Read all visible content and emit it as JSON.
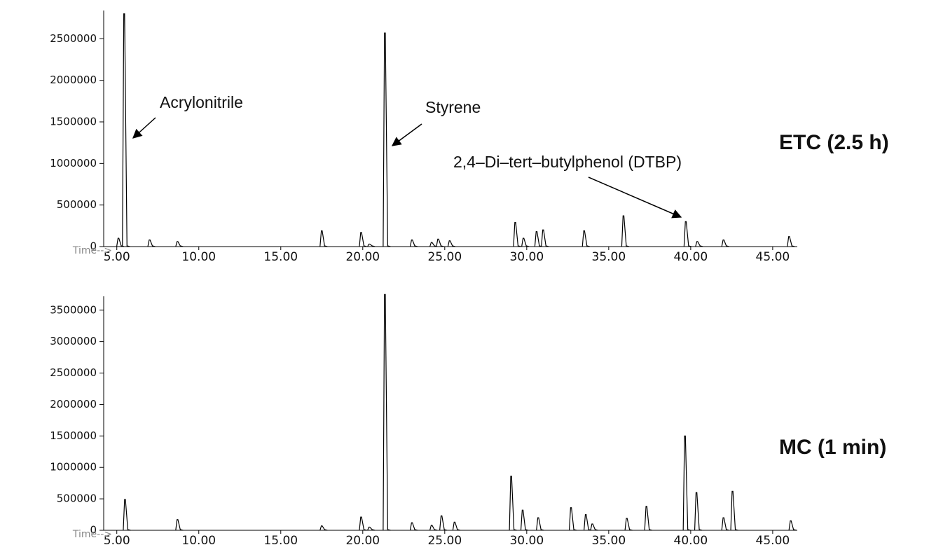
{
  "chart_data": [
    {
      "type": "spike",
      "label": "ETC (2.5 h)",
      "xlabel": "Time-->",
      "color": "#000000",
      "x": [
        5.1,
        5.45,
        7.0,
        8.7,
        17.5,
        19.9,
        20.4,
        21.35,
        23.0,
        24.2,
        24.6,
        25.3,
        29.3,
        29.8,
        30.6,
        31.0,
        33.5,
        35.9,
        39.7,
        40.4,
        42.0,
        46.0
      ],
      "values": [
        100000,
        2800000,
        80000,
        60000,
        190000,
        170000,
        30000,
        2570000,
        80000,
        50000,
        90000,
        70000,
        290000,
        100000,
        180000,
        200000,
        190000,
        370000,
        300000,
        60000,
        80000,
        120000
      ],
      "annotations": [
        "Acrylonitrile",
        "Styrene",
        "2,4–Di–tert–butylphenol (DTBP)"
      ],
      "xlim": [
        4.2,
        46.5
      ],
      "ylim": [
        0,
        2840000
      ],
      "xticks": [
        {
          "value": 5,
          "label": "5.00"
        },
        {
          "value": 10,
          "label": "10.00"
        },
        {
          "value": 15,
          "label": "15.00"
        },
        {
          "value": 20,
          "label": "20.00"
        },
        {
          "value": 25,
          "label": "25.00"
        },
        {
          "value": 30,
          "label": "30.00"
        },
        {
          "value": 35,
          "label": "35.00"
        },
        {
          "value": 40,
          "label": "40.00"
        },
        {
          "value": 45,
          "label": "45.00"
        }
      ],
      "yticks": [
        0,
        500000,
        1000000,
        1500000,
        2000000,
        2500000
      ]
    },
    {
      "type": "spike",
      "label": "MC (1 min)",
      "xlabel": "Time-->",
      "color": "#000000",
      "x": [
        5.5,
        8.7,
        17.5,
        19.9,
        20.4,
        21.35,
        23.0,
        24.2,
        24.8,
        25.6,
        29.05,
        29.75,
        30.7,
        32.7,
        33.6,
        34.0,
        36.1,
        37.3,
        39.65,
        40.35,
        42.0,
        42.55,
        46.1
      ],
      "values": [
        490000,
        170000,
        70000,
        210000,
        50000,
        3750000,
        120000,
        80000,
        230000,
        130000,
        860000,
        320000,
        200000,
        360000,
        250000,
        100000,
        190000,
        380000,
        1500000,
        600000,
        200000,
        620000,
        150000
      ],
      "xlim": [
        4.2,
        46.5
      ],
      "ylim": [
        0,
        3720000
      ],
      "xticks": [
        {
          "value": 5,
          "label": "5.00"
        },
        {
          "value": 10,
          "label": "10.00"
        },
        {
          "value": 15,
          "label": "15.00"
        },
        {
          "value": 20,
          "label": "20.00"
        },
        {
          "value": 25,
          "label": "25.00"
        },
        {
          "value": 30,
          "label": "30.00"
        },
        {
          "value": 35,
          "label": "35.00"
        },
        {
          "value": 40,
          "label": "40.00"
        },
        {
          "value": 45,
          "label": "45.00"
        }
      ],
      "yticks": [
        0,
        500000,
        1000000,
        1500000,
        2000000,
        2500000,
        3000000,
        3500000
      ]
    }
  ]
}
